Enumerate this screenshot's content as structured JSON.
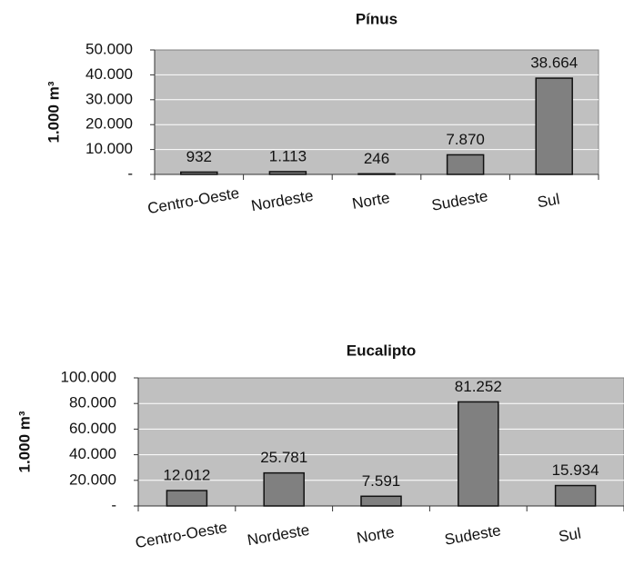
{
  "chart_data": [
    {
      "type": "bar",
      "title": "Pínus",
      "y_label": "1.000 m³",
      "categories": [
        "Centro-Oeste",
        "Nordeste",
        "Norte",
        "Sudeste",
        "Sul"
      ],
      "values": [
        932,
        1113,
        246,
        7870,
        38664
      ],
      "value_labels": [
        "932",
        "1.113",
        "246",
        "7.870",
        "38.664"
      ],
      "color": "#808080",
      "ylim": [
        0,
        50000
      ],
      "yticks": [
        {
          "value": 0,
          "label": "-"
        },
        {
          "value": 10000,
          "label": "10.000"
        },
        {
          "value": 20000,
          "label": "20.000"
        },
        {
          "value": 30000,
          "label": "30.000"
        },
        {
          "value": 40000,
          "label": "40.000"
        },
        {
          "value": 50000,
          "label": "50.000"
        }
      ],
      "grid": true
    },
    {
      "type": "bar",
      "title": "Eucalipto",
      "y_label": "1.000 m³",
      "categories": [
        "Centro-Oeste",
        "Nordeste",
        "Norte",
        "Sudeste",
        "Sul"
      ],
      "values": [
        12012,
        25781,
        7591,
        81252,
        15934
      ],
      "value_labels": [
        "12.012",
        "25.781",
        "7.591",
        "81.252",
        "15.934"
      ],
      "color": "#808080",
      "ylim": [
        0,
        100000
      ],
      "yticks": [
        {
          "value": 0,
          "label": "-"
        },
        {
          "value": 20000,
          "label": "20.000"
        },
        {
          "value": 40000,
          "label": "40.000"
        },
        {
          "value": 60000,
          "label": "60.000"
        },
        {
          "value": 80000,
          "label": "80.000"
        },
        {
          "value": 100000,
          "label": "100.000"
        }
      ],
      "grid": true
    }
  ]
}
